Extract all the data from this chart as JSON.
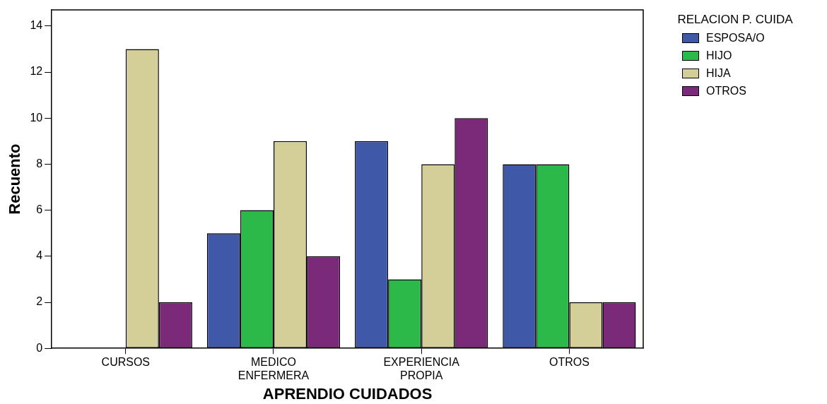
{
  "chart_data": {
    "type": "bar",
    "xlabel": "APRENDIO CUIDADOS",
    "ylabel": "Recuento",
    "legend_title": "RELACION P. CUIDA",
    "legend": "right",
    "categories": [
      "CURSOS",
      "MEDICO ENFERMERA",
      "EXPERIENCIA PROPIA",
      "OTROS"
    ],
    "series": [
      {
        "name": "ESPOSA/O",
        "color": "#3f58a8",
        "values": [
          null,
          5,
          9,
          8
        ]
      },
      {
        "name": "HIJO",
        "color": "#2db84a",
        "values": [
          null,
          6,
          3,
          8
        ]
      },
      {
        "name": "HIJA",
        "color": "#d4cf99",
        "values": [
          13,
          9,
          8,
          2
        ]
      },
      {
        "name": "OTROS",
        "color": "#7b2a7a",
        "values": [
          2,
          4,
          10,
          2
        ]
      }
    ],
    "ylim": [
      0,
      14.7
    ],
    "yticks": [
      0,
      2,
      4,
      6,
      8,
      10,
      12,
      14
    ],
    "grid": false
  }
}
